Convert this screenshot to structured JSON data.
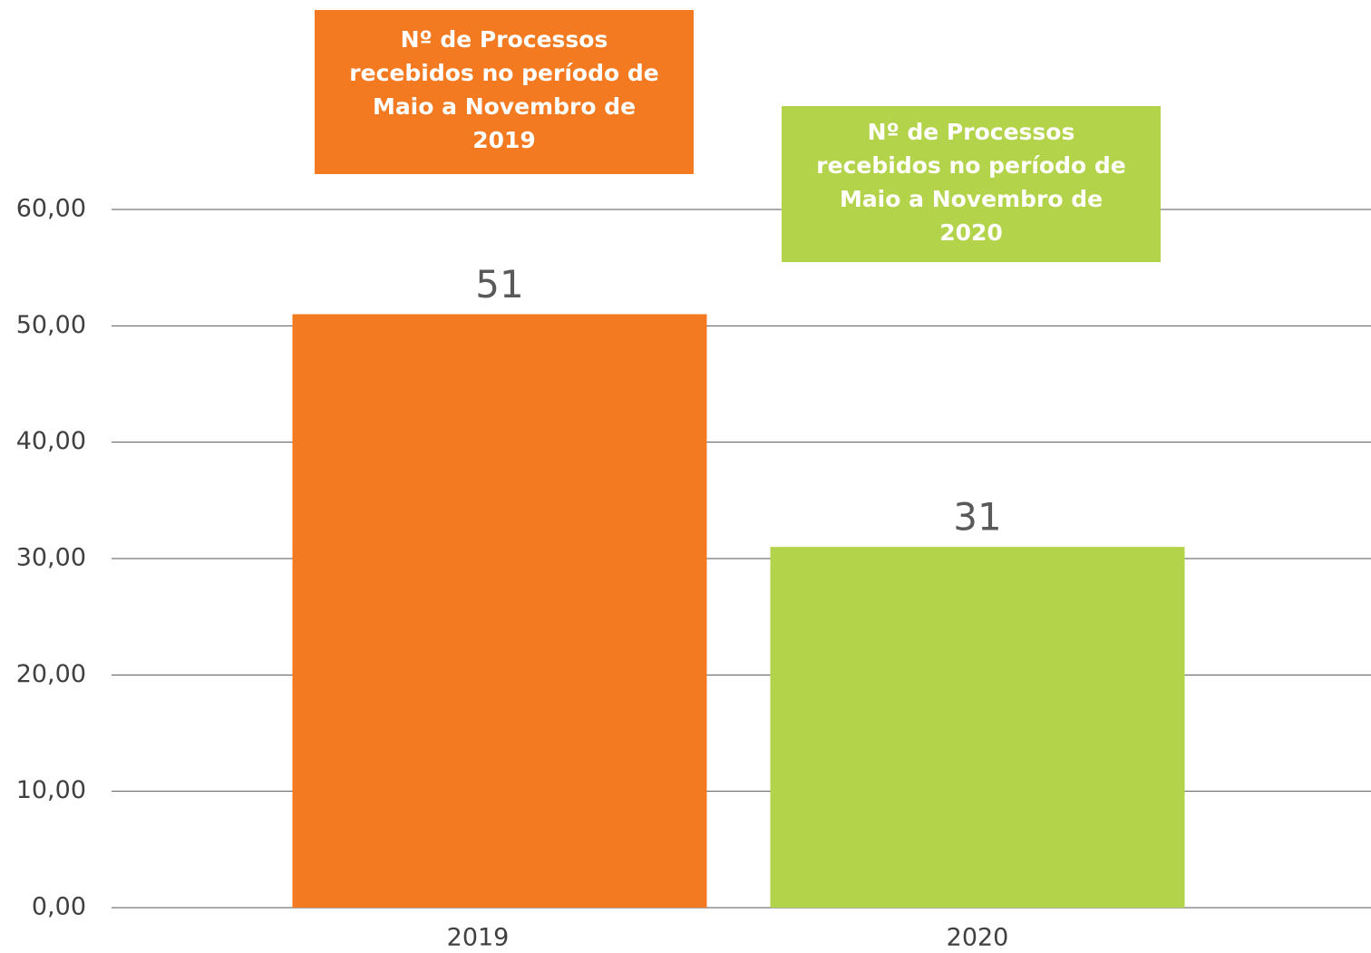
{
  "chart_data": {
    "type": "bar",
    "categories": [
      "2019",
      "2020"
    ],
    "values": [
      51,
      31
    ],
    "colors": [
      "#f47a22",
      "#b3d34a"
    ],
    "ylim": [
      0,
      60
    ],
    "yticks": [
      {
        "value": 0,
        "label": "0,00"
      },
      {
        "value": 10,
        "label": "10,00"
      },
      {
        "value": 20,
        "label": "20,00"
      },
      {
        "value": 30,
        "label": "30,00"
      },
      {
        "value": 40,
        "label": "40,00"
      },
      {
        "value": 50,
        "label": "50,00"
      },
      {
        "value": 60,
        "label": "60,00"
      }
    ],
    "grid": true,
    "annotations": [
      {
        "lines": [
          "Nº de Processos",
          "recebidos no período de",
          "Maio a Novembro de",
          "2019"
        ],
        "color": "#f47a22"
      },
      {
        "lines": [
          "Nº de Processos",
          "recebidos no período de",
          "Maio a Novembro de",
          "2020"
        ],
        "color": "#b3d34a"
      }
    ]
  }
}
